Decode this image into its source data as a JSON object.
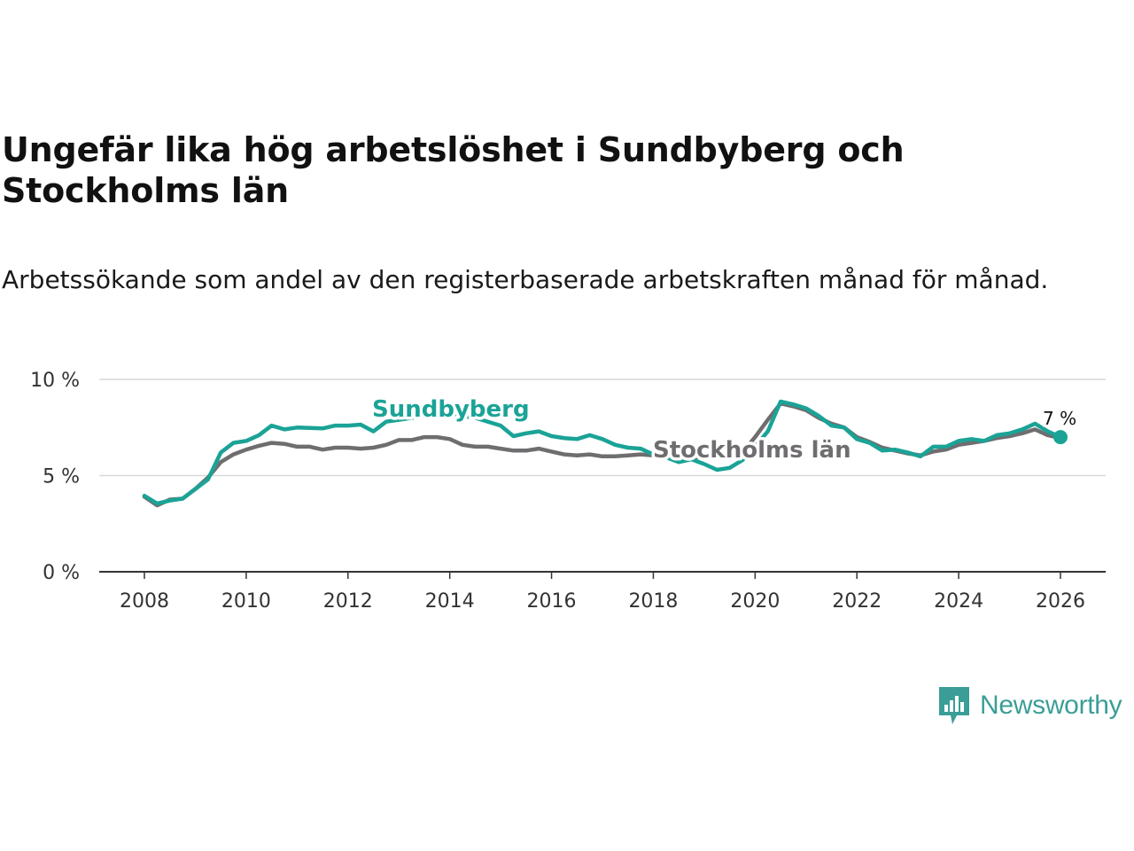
{
  "title": "Ungefär lika hög arbetslöshet i Sundbyberg och Stockholms län",
  "subtitle": "Arbetssökande som andel av den registerbaserade arbetskraften månad för månad.",
  "logo": {
    "text": "Newsworthy",
    "color": "#3a9e97"
  },
  "chart_data": {
    "type": "line",
    "title": "Ungefär lika hög arbetslöshet i Sundbyberg och Stockholms län",
    "xlabel": "",
    "ylabel": "",
    "xlim": [
      2007.5,
      2027
    ],
    "ylim": [
      0,
      10
    ],
    "y_ticks": [
      0,
      5,
      10
    ],
    "y_tick_labels": [
      "0 %",
      "5 %",
      "10 %"
    ],
    "x_ticks": [
      2008,
      2010,
      2012,
      2014,
      2016,
      2018,
      2020,
      2022,
      2024,
      2026
    ],
    "x_tick_labels": [
      "2008",
      "2010",
      "2012",
      "2014",
      "2016",
      "2018",
      "2020",
      "2022",
      "2024",
      "2026"
    ],
    "grid": true,
    "end_label": "7 %",
    "series": [
      {
        "name": "Sundbyberg",
        "color": "#1aa396",
        "points": [
          [
            2008.0,
            3.95
          ],
          [
            2008.25,
            3.55
          ],
          [
            2008.5,
            3.7
          ],
          [
            2008.75,
            3.8
          ],
          [
            2009.0,
            4.3
          ],
          [
            2009.25,
            4.8
          ],
          [
            2009.5,
            6.2
          ],
          [
            2009.75,
            6.7
          ],
          [
            2010.0,
            6.8
          ],
          [
            2010.25,
            7.1
          ],
          [
            2010.5,
            7.6
          ],
          [
            2010.75,
            7.4
          ],
          [
            2011.0,
            7.5
          ],
          [
            2011.5,
            7.45
          ],
          [
            2011.75,
            7.6
          ],
          [
            2012.0,
            7.6
          ],
          [
            2012.25,
            7.65
          ],
          [
            2012.5,
            7.3
          ],
          [
            2012.75,
            7.8
          ],
          [
            2013.0,
            7.9
          ],
          [
            2013.5,
            8.1
          ],
          [
            2014.0,
            8.2
          ],
          [
            2014.5,
            8.0
          ],
          [
            2015.0,
            7.6
          ],
          [
            2015.25,
            7.05
          ],
          [
            2015.5,
            7.2
          ],
          [
            2015.75,
            7.3
          ],
          [
            2016.0,
            7.05
          ],
          [
            2016.25,
            6.95
          ],
          [
            2016.5,
            6.9
          ],
          [
            2016.75,
            7.1
          ],
          [
            2017.0,
            6.9
          ],
          [
            2017.25,
            6.6
          ],
          [
            2017.5,
            6.45
          ],
          [
            2017.75,
            6.4
          ],
          [
            2018.0,
            6.1
          ],
          [
            2018.25,
            5.95
          ],
          [
            2018.5,
            5.7
          ],
          [
            2018.75,
            5.85
          ],
          [
            2019.0,
            5.6
          ],
          [
            2019.25,
            5.3
          ],
          [
            2019.5,
            5.4
          ],
          [
            2019.75,
            5.8
          ],
          [
            2020.0,
            6.5
          ],
          [
            2020.25,
            7.3
          ],
          [
            2020.5,
            8.85
          ],
          [
            2020.75,
            8.7
          ],
          [
            2021.0,
            8.5
          ],
          [
            2021.25,
            8.1
          ],
          [
            2021.5,
            7.6
          ],
          [
            2021.75,
            7.5
          ],
          [
            2022.0,
            6.9
          ],
          [
            2022.25,
            6.7
          ],
          [
            2022.5,
            6.3
          ],
          [
            2022.75,
            6.35
          ],
          [
            2023.0,
            6.2
          ],
          [
            2023.25,
            6.0
          ],
          [
            2023.5,
            6.5
          ],
          [
            2023.75,
            6.5
          ],
          [
            2024.0,
            6.8
          ],
          [
            2024.25,
            6.9
          ],
          [
            2024.5,
            6.8
          ],
          [
            2024.75,
            7.1
          ],
          [
            2025.0,
            7.2
          ],
          [
            2025.25,
            7.4
          ],
          [
            2025.5,
            7.7
          ],
          [
            2025.75,
            7.3
          ],
          [
            2026.0,
            7.0
          ]
        ]
      },
      {
        "name": "Stockholms län",
        "color": "#6f6d70",
        "points": [
          [
            2008.0,
            3.9
          ],
          [
            2008.25,
            3.45
          ],
          [
            2008.5,
            3.75
          ],
          [
            2008.75,
            3.8
          ],
          [
            2009.0,
            4.3
          ],
          [
            2009.25,
            4.9
          ],
          [
            2009.5,
            5.7
          ],
          [
            2009.75,
            6.1
          ],
          [
            2010.0,
            6.35
          ],
          [
            2010.25,
            6.55
          ],
          [
            2010.5,
            6.7
          ],
          [
            2010.75,
            6.65
          ],
          [
            2011.0,
            6.5
          ],
          [
            2011.25,
            6.5
          ],
          [
            2011.5,
            6.35
          ],
          [
            2011.75,
            6.45
          ],
          [
            2012.0,
            6.45
          ],
          [
            2012.25,
            6.4
          ],
          [
            2012.5,
            6.45
          ],
          [
            2012.75,
            6.6
          ],
          [
            2013.0,
            6.85
          ],
          [
            2013.25,
            6.85
          ],
          [
            2013.5,
            7.0
          ],
          [
            2013.75,
            7.0
          ],
          [
            2014.0,
            6.9
          ],
          [
            2014.25,
            6.6
          ],
          [
            2014.5,
            6.5
          ],
          [
            2014.75,
            6.5
          ],
          [
            2015.0,
            6.4
          ],
          [
            2015.25,
            6.3
          ],
          [
            2015.5,
            6.3
          ],
          [
            2015.75,
            6.4
          ],
          [
            2016.0,
            6.25
          ],
          [
            2016.25,
            6.1
          ],
          [
            2016.5,
            6.05
          ],
          [
            2016.75,
            6.1
          ],
          [
            2017.0,
            6.0
          ],
          [
            2017.25,
            6.0
          ],
          [
            2017.5,
            6.05
          ],
          [
            2017.75,
            6.1
          ],
          [
            2018.0,
            6.05
          ],
          [
            2018.25,
            6.0
          ],
          [
            2018.5,
            5.9
          ],
          [
            2018.75,
            5.95
          ],
          [
            2019.0,
            5.95
          ],
          [
            2019.25,
            6.0
          ],
          [
            2019.5,
            6.1
          ],
          [
            2019.75,
            6.2
          ],
          [
            2020.0,
            7.0
          ],
          [
            2020.25,
            7.9
          ],
          [
            2020.5,
            8.75
          ],
          [
            2020.75,
            8.6
          ],
          [
            2021.0,
            8.4
          ],
          [
            2021.25,
            8.0
          ],
          [
            2021.5,
            7.7
          ],
          [
            2021.75,
            7.5
          ],
          [
            2022.0,
            7.0
          ],
          [
            2022.25,
            6.75
          ],
          [
            2022.5,
            6.45
          ],
          [
            2022.75,
            6.3
          ],
          [
            2023.0,
            6.15
          ],
          [
            2023.25,
            6.05
          ],
          [
            2023.5,
            6.25
          ],
          [
            2023.75,
            6.35
          ],
          [
            2024.0,
            6.6
          ],
          [
            2024.25,
            6.7
          ],
          [
            2024.5,
            6.8
          ],
          [
            2024.75,
            6.95
          ],
          [
            2025.0,
            7.05
          ],
          [
            2025.25,
            7.2
          ],
          [
            2025.5,
            7.4
          ],
          [
            2025.75,
            7.1
          ],
          [
            2026.0,
            6.95
          ]
        ]
      }
    ]
  }
}
